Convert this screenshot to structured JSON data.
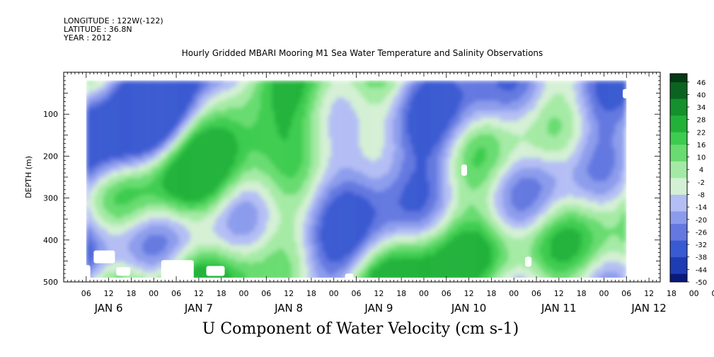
{
  "header": {
    "longitude": "LONGITUDE : 122W(-122)",
    "latitude": "LATITUDE : 36.8N",
    "year": "YEAR : 2012"
  },
  "title": "Hourly Gridded MBARI Mooring M1 Sea Water Temperature and Salinity Observations",
  "footer": "U Component of Water Velocity (cm s-1)",
  "chart_data": {
    "type": "heatmap",
    "title": "Hourly Gridded MBARI Mooring M1 Sea Water Temperature and Salinity Observations",
    "xlabel": "",
    "ylabel": "DEPTH (m)",
    "xlim_hours": [
      -6,
      153
    ],
    "ylim": [
      500,
      0
    ],
    "y_ticks": [
      100,
      200,
      300,
      400,
      500
    ],
    "hour_tick_labels": [
      "06",
      "12",
      "18",
      "00",
      "06",
      "12",
      "18",
      "00",
      "06",
      "12",
      "18",
      "00",
      "06",
      "12",
      "18",
      "00",
      "06",
      "12",
      "18",
      "00",
      "06",
      "12",
      "18",
      "00",
      "06",
      "12",
      "18",
      "00",
      "06",
      "12"
    ],
    "day_labels": [
      "JAN  6",
      "JAN  7",
      "JAN  8",
      "JAN  9",
      "JAN 10",
      "JAN 11",
      "JAN 12"
    ],
    "colorbar": {
      "min": -50,
      "max": 50,
      "step": 2,
      "tick_labels": [
        "46",
        "40",
        "34",
        "28",
        "22",
        "16",
        "10",
        "4",
        "-2",
        "-8",
        "-14",
        "-20",
        "-26",
        "-32",
        "-38",
        "-44",
        "-50"
      ],
      "colors_low_to_high": [
        "#0a1a7a",
        "#1e3cb4",
        "#3a5ad2",
        "#6478e0",
        "#8c9cec",
        "#b4bef4",
        "#d4f0d4",
        "#a4eaa4",
        "#68dc70",
        "#3ccc50",
        "#22b23a",
        "#14902c",
        "#0a6420",
        "#043a14"
      ]
    },
    "data_extent": {
      "x_hours": [
        0,
        144
      ],
      "depth": [
        20,
        490
      ]
    },
    "grid": false,
    "legend": "colorbar-right"
  }
}
